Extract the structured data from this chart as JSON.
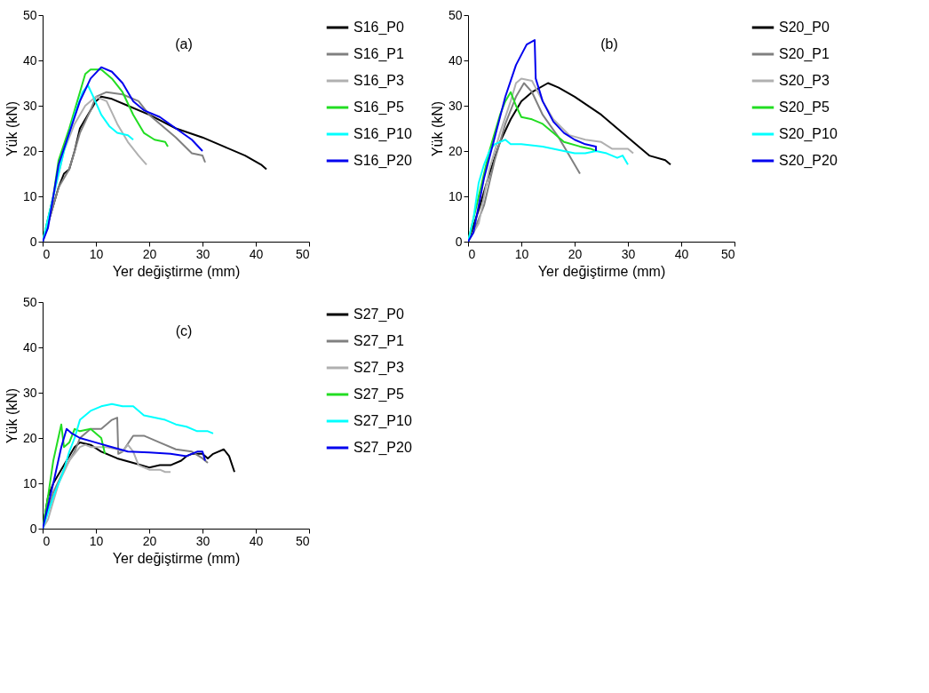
{
  "chart_data": [
    {
      "type": "line",
      "xlabel": "Yer değiştirme (mm)",
      "ylabel": "Yük (kN)",
      "annotations": [
        "(a)"
      ],
      "xlim": [
        0,
        50
      ],
      "ylim": [
        0,
        50
      ],
      "xticks": [
        0,
        10,
        20,
        30,
        40,
        50
      ],
      "yticks": [
        0,
        10,
        20,
        30,
        40,
        50
      ],
      "grid": false,
      "legend": "right",
      "marker": "none",
      "line_style": "solid",
      "series": [
        {
          "name": "S16_P0",
          "color": "#000000",
          "x": [
            0,
            2,
            3,
            4,
            5,
            6,
            7,
            8,
            10,
            11,
            13,
            16,
            20,
            25,
            30,
            34,
            38,
            41,
            42
          ],
          "values": [
            0,
            8,
            12,
            15,
            16,
            20,
            25,
            27,
            31,
            32,
            31.5,
            30,
            28,
            25,
            23,
            21,
            19,
            17,
            16
          ]
        },
        {
          "name": "S16_P1",
          "color": "#808080",
          "x": [
            0,
            3,
            5,
            7,
            9,
            10,
            12,
            15,
            18,
            20,
            25,
            28,
            30,
            30.5
          ],
          "values": [
            0,
            12,
            16,
            24,
            29,
            32,
            33,
            32.5,
            31,
            28,
            23,
            19.5,
            19,
            17.5
          ]
        },
        {
          "name": "S16_P3",
          "color": "#b0b0b0",
          "x": [
            0,
            2,
            4,
            6,
            8,
            10,
            12,
            14,
            16,
            18,
            19.5
          ],
          "values": [
            0,
            10,
            20,
            26,
            30,
            32,
            31,
            26,
            22,
            19,
            17
          ]
        },
        {
          "name": "S16_P5",
          "color": "#22dd22",
          "x": [
            0,
            2,
            3,
            5,
            7,
            8,
            9,
            11,
            13,
            15,
            17,
            19,
            21,
            23,
            23.5
          ],
          "values": [
            0,
            10,
            18,
            25,
            33,
            37,
            38,
            38,
            36,
            33,
            28,
            24,
            22.5,
            22,
            21
          ]
        },
        {
          "name": "S16_P10",
          "color": "#00ffff",
          "x": [
            0,
            2,
            4,
            6,
            7.5,
            8.5,
            9.5,
            11,
            12.5,
            14,
            16,
            17
          ],
          "values": [
            0,
            10,
            20,
            28,
            33,
            34.5,
            32,
            28,
            25.5,
            24,
            23.5,
            22.5
          ]
        },
        {
          "name": "S16_P20",
          "color": "#0000ee",
          "x": [
            0,
            1,
            3,
            5,
            7,
            9,
            11,
            13,
            15,
            17,
            19,
            22,
            25,
            28,
            30
          ],
          "values": [
            0,
            3,
            17,
            24,
            31,
            36,
            38.5,
            37.5,
            35,
            31,
            29,
            27.5,
            25,
            22.5,
            20
          ]
        }
      ]
    },
    {
      "type": "line",
      "xlabel": "Yer değiştirme (mm)",
      "ylabel": "Yük (kN)",
      "annotations": [
        "(b)"
      ],
      "xlim": [
        0,
        50
      ],
      "ylim": [
        0,
        50
      ],
      "xticks": [
        0,
        10,
        20,
        30,
        40,
        50
      ],
      "yticks": [
        0,
        10,
        20,
        30,
        40,
        50
      ],
      "grid": false,
      "legend": "right",
      "marker": "none",
      "line_style": "solid",
      "series": [
        {
          "name": "S20_P0",
          "color": "#000000",
          "x": [
            0,
            2,
            4,
            6,
            8,
            10,
            12,
            15,
            17,
            20,
            25,
            30,
            34,
            37,
            38
          ],
          "values": [
            0,
            7,
            15,
            22,
            27,
            31,
            33,
            35,
            34,
            32,
            28,
            23,
            19,
            18,
            17
          ]
        },
        {
          "name": "S20_P1",
          "color": "#808080",
          "x": [
            0,
            1,
            3,
            5,
            7,
            9,
            10.5,
            12,
            14,
            17,
            19,
            21
          ],
          "values": [
            0,
            2,
            8,
            18,
            26,
            32,
            35,
            33,
            28,
            23,
            19,
            15
          ]
        },
        {
          "name": "S20_P3",
          "color": "#b0b0b0",
          "x": [
            0,
            2,
            4,
            6,
            8,
            9,
            10,
            12,
            14,
            16,
            19,
            22,
            25,
            27,
            30,
            31
          ],
          "values": [
            0,
            4,
            16,
            24,
            31,
            35,
            36,
            35.5,
            31,
            27,
            23.5,
            22.5,
            22,
            20.5,
            20.5,
            19.5
          ]
        },
        {
          "name": "S20_P5",
          "color": "#22dd22",
          "x": [
            0,
            2,
            4,
            6,
            7,
            8,
            9,
            10,
            12,
            14,
            16,
            18,
            21,
            23,
            24
          ],
          "values": [
            0,
            10,
            20,
            28,
            31,
            33,
            30,
            27.5,
            27,
            26,
            24,
            22,
            21,
            20.5,
            20
          ]
        },
        {
          "name": "S20_P10",
          "color": "#00ffff",
          "x": [
            0,
            1,
            2,
            3,
            4,
            5,
            7,
            8,
            10,
            14,
            18,
            20,
            22,
            24,
            26,
            28,
            29,
            30
          ],
          "values": [
            0,
            5,
            13,
            17,
            20,
            21.5,
            22.5,
            21.5,
            21.5,
            21,
            20,
            19.5,
            19.5,
            20,
            19.5,
            18.5,
            19,
            17
          ]
        },
        {
          "name": "S20_P20",
          "color": "#0000ee",
          "x": [
            0,
            1,
            3,
            5,
            7,
            9,
            11,
            12.5,
            12.7,
            14,
            16,
            18,
            20,
            22,
            24,
            24
          ],
          "values": [
            0,
            2,
            14,
            23,
            32,
            39,
            43.5,
            44.5,
            36,
            31,
            26.5,
            24,
            22.5,
            21.5,
            21,
            20
          ]
        }
      ]
    },
    {
      "type": "line",
      "xlabel": "Yer değiştirme (mm)",
      "ylabel": "Yük (kN)",
      "annotations": [
        "(c)"
      ],
      "xlim": [
        0,
        50
      ],
      "ylim": [
        0,
        50
      ],
      "xticks": [
        0,
        10,
        20,
        30,
        40,
        50
      ],
      "yticks": [
        0,
        10,
        20,
        30,
        40,
        50
      ],
      "grid": false,
      "legend": "right",
      "marker": "none",
      "line_style": "solid",
      "series": [
        {
          "name": "S27_P0",
          "color": "#000000",
          "x": [
            0,
            1,
            2,
            4,
            6,
            7,
            9,
            11,
            14,
            17,
            20,
            22,
            24,
            26,
            27,
            28,
            30,
            31,
            32,
            34,
            35,
            36
          ],
          "values": [
            0,
            7,
            10,
            14,
            18,
            19,
            18.5,
            17,
            15.5,
            14.5,
            13.5,
            14,
            14,
            15,
            16,
            16.5,
            16.5,
            15.5,
            16.5,
            17.5,
            16,
            12.5
          ]
        },
        {
          "name": "S27_P1",
          "color": "#808080",
          "x": [
            0,
            2,
            4,
            6,
            7,
            9,
            11,
            13,
            14,
            14.2,
            15,
            17,
            19,
            22,
            25,
            28,
            30,
            31
          ],
          "values": [
            0,
            8,
            13,
            17,
            20,
            22,
            22,
            24,
            24.5,
            16.5,
            17,
            20.5,
            20.5,
            19,
            17.5,
            17,
            15.5,
            14.5
          ]
        },
        {
          "name": "S27_P3",
          "color": "#b0b0b0",
          "x": [
            0,
            1,
            3,
            5,
            7,
            8,
            9,
            12,
            14,
            15,
            16,
            17,
            18,
            20,
            22,
            23,
            24
          ],
          "values": [
            0,
            2,
            10,
            15,
            18,
            18.5,
            18,
            18,
            17.5,
            17,
            18.5,
            17,
            14,
            13,
            13,
            12.5,
            12.5
          ]
        },
        {
          "name": "S27_P5",
          "color": "#22dd22",
          "x": [
            0,
            1,
            2,
            3.5,
            4,
            5,
            6,
            7,
            9,
            11,
            11.7
          ],
          "values": [
            0,
            7,
            15,
            23,
            18,
            19,
            22,
            21.5,
            22,
            20,
            16.5
          ]
        },
        {
          "name": "S27_P10",
          "color": "#00ffff",
          "x": [
            0,
            2,
            4,
            5,
            6,
            7,
            9,
            11,
            13,
            15,
            17,
            19,
            21,
            23,
            25,
            27,
            29,
            31,
            32
          ],
          "values": [
            0,
            7,
            13,
            17,
            20,
            24,
            26,
            27,
            27.5,
            27,
            27,
            25,
            24.5,
            24,
            23,
            22.5,
            21.5,
            21.5,
            21
          ]
        },
        {
          "name": "S27_P20",
          "color": "#0000ee",
          "x": [
            0,
            2,
            3.5,
            4.5,
            5.5,
            7,
            10,
            13,
            16,
            20,
            24,
            27,
            29,
            30,
            30.5
          ],
          "values": [
            0,
            10,
            18,
            22,
            21,
            20,
            19,
            18,
            17,
            16.8,
            16.5,
            16,
            17,
            17,
            15
          ]
        }
      ]
    }
  ]
}
